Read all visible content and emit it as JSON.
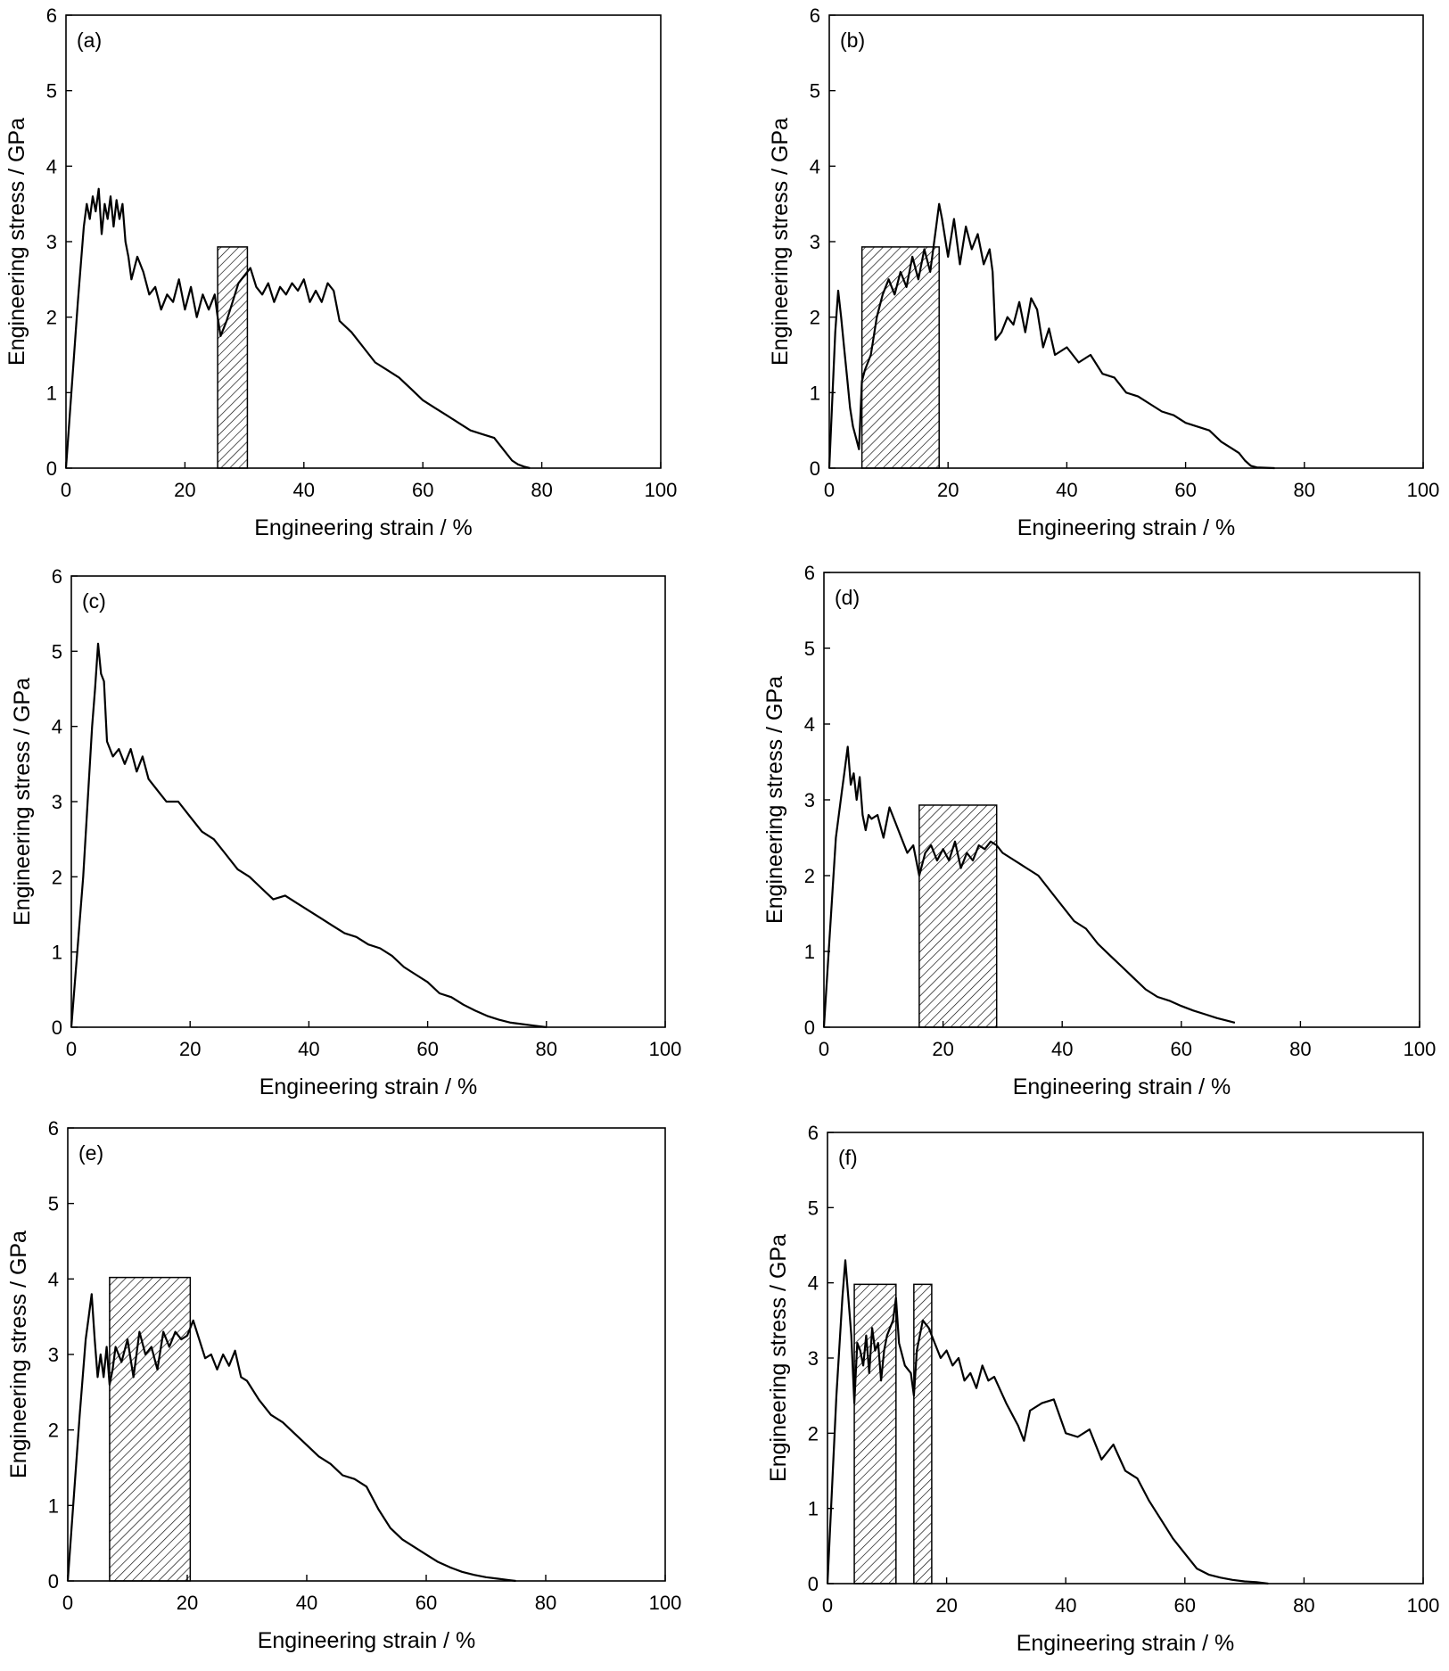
{
  "chart_data": [
    {
      "panel": "(a)",
      "type": "line",
      "xlabel": "Engineering strain / %",
      "ylabel": "Engineering stress / GPa",
      "xlim": [
        0,
        100
      ],
      "ylim": [
        0,
        6
      ],
      "xticks": [
        "0",
        "20",
        "40",
        "60",
        "80",
        "100"
      ],
      "yticks": [
        "0",
        "1",
        "2",
        "3",
        "4",
        "5",
        "6"
      ],
      "shaded": [
        {
          "x0": 25.5,
          "x1": 30.5,
          "y": 2.93
        }
      ],
      "x": [
        0,
        2,
        3,
        3.5,
        4,
        4.5,
        5,
        5.5,
        6,
        6.5,
        7,
        7.5,
        8,
        8.5,
        9,
        9.5,
        10,
        10.5,
        11,
        12,
        13,
        14,
        15,
        16,
        17,
        18,
        19,
        20,
        21,
        22,
        23,
        24,
        25,
        25.5,
        26,
        27,
        28,
        29,
        30,
        31,
        32,
        33,
        34,
        35,
        36,
        37,
        38,
        39,
        40,
        41,
        42,
        43,
        44,
        45,
        46,
        48,
        50,
        52,
        54,
        56,
        58,
        60,
        62,
        64,
        66,
        68,
        70,
        72,
        74,
        75,
        76,
        77,
        78
      ],
      "y": [
        0,
        2.2,
        3.2,
        3.5,
        3.3,
        3.6,
        3.4,
        3.7,
        3.1,
        3.5,
        3.3,
        3.6,
        3.2,
        3.55,
        3.3,
        3.5,
        3.0,
        2.8,
        2.5,
        2.8,
        2.6,
        2.3,
        2.4,
        2.1,
        2.3,
        2.2,
        2.5,
        2.1,
        2.4,
        2.0,
        2.3,
        2.1,
        2.3,
        2.0,
        1.75,
        1.95,
        2.2,
        2.45,
        2.55,
        2.65,
        2.4,
        2.3,
        2.45,
        2.2,
        2.4,
        2.3,
        2.45,
        2.35,
        2.5,
        2.2,
        2.35,
        2.2,
        2.45,
        2.35,
        1.95,
        1.8,
        1.6,
        1.4,
        1.3,
        1.2,
        1.05,
        0.9,
        0.8,
        0.7,
        0.6,
        0.5,
        0.45,
        0.4,
        0.2,
        0.1,
        0.05,
        0.02,
        0
      ]
    },
    {
      "panel": "(b)",
      "type": "line",
      "xlabel": "Engineering strain / %",
      "ylabel": "Engineering stress / GPa",
      "xlim": [
        0,
        100
      ],
      "ylim": [
        0,
        6
      ],
      "xticks": [
        "0",
        "20",
        "40",
        "60",
        "80",
        "100"
      ],
      "yticks": [
        "0",
        "1",
        "2",
        "3",
        "4",
        "5",
        "6"
      ],
      "shaded": [
        {
          "x0": 5.5,
          "x1": 18.5,
          "y": 2.93
        }
      ],
      "x": [
        0,
        1,
        1.5,
        2,
        2.5,
        3,
        3.5,
        4,
        4.5,
        5,
        5.5,
        6,
        7,
        8,
        9,
        10,
        11,
        12,
        13,
        14,
        15,
        16,
        17,
        18,
        18.5,
        19,
        20,
        21,
        22,
        23,
        24,
        25,
        26,
        27,
        27.5,
        28,
        29,
        30,
        31,
        32,
        33,
        34,
        35,
        36,
        37,
        38,
        40,
        42,
        44,
        46,
        48,
        50,
        52,
        54,
        56,
        58,
        60,
        62,
        64,
        66,
        68,
        69,
        70,
        71,
        72,
        75
      ],
      "y": [
        0,
        1.8,
        2.35,
        2.0,
        1.6,
        1.2,
        0.8,
        0.55,
        0.4,
        0.25,
        1.15,
        1.3,
        1.5,
        2.0,
        2.3,
        2.5,
        2.3,
        2.6,
        2.4,
        2.8,
        2.5,
        2.9,
        2.6,
        3.2,
        3.5,
        3.3,
        2.8,
        3.3,
        2.7,
        3.2,
        2.9,
        3.1,
        2.7,
        2.9,
        2.6,
        1.7,
        1.8,
        2.0,
        1.9,
        2.2,
        1.8,
        2.25,
        2.1,
        1.6,
        1.85,
        1.5,
        1.6,
        1.4,
        1.5,
        1.25,
        1.2,
        1.0,
        0.95,
        0.85,
        0.75,
        0.7,
        0.6,
        0.55,
        0.5,
        0.35,
        0.25,
        0.2,
        0.1,
        0.03,
        0.01,
        0
      ]
    },
    {
      "panel": "(c)",
      "type": "line",
      "xlabel": "Engineering strain / %",
      "ylabel": "Engineering stress / GPa",
      "xlim": [
        0,
        100
      ],
      "ylim": [
        0,
        6
      ],
      "xticks": [
        "0",
        "20",
        "40",
        "60",
        "80",
        "100"
      ],
      "yticks": [
        "0",
        "1",
        "2",
        "3",
        "4",
        "5",
        "6"
      ],
      "shaded": [],
      "x": [
        0,
        2,
        3.5,
        4,
        4.5,
        5,
        5.5,
        6,
        7,
        8,
        9,
        10,
        11,
        12,
        13,
        14,
        15,
        16,
        18,
        20,
        22,
        24,
        26,
        28,
        30,
        32,
        34,
        36,
        38,
        40,
        42,
        44,
        46,
        48,
        50,
        52,
        54,
        56,
        58,
        60,
        62,
        64,
        66,
        68,
        70,
        72,
        74,
        76,
        78,
        80
      ],
      "y": [
        0,
        2.0,
        4.0,
        4.5,
        5.1,
        4.7,
        4.6,
        3.8,
        3.6,
        3.7,
        3.5,
        3.7,
        3.4,
        3.6,
        3.3,
        3.2,
        3.1,
        3.0,
        3.0,
        2.8,
        2.6,
        2.5,
        2.3,
        2.1,
        2.0,
        1.85,
        1.7,
        1.75,
        1.65,
        1.55,
        1.45,
        1.35,
        1.25,
        1.2,
        1.1,
        1.05,
        0.95,
        0.8,
        0.7,
        0.6,
        0.45,
        0.4,
        0.3,
        0.22,
        0.15,
        0.1,
        0.06,
        0.04,
        0.02,
        0
      ]
    },
    {
      "panel": "(d)",
      "type": "line",
      "xlabel": "Engineering strain / %",
      "ylabel": "Engineering stress / GPa",
      "xlim": [
        0,
        100
      ],
      "ylim": [
        0,
        6
      ],
      "xticks": [
        "0",
        "20",
        "40",
        "60",
        "80",
        "100"
      ],
      "yticks": [
        "0",
        "1",
        "2",
        "3",
        "4",
        "5",
        "6"
      ],
      "shaded": [
        {
          "x0": 16,
          "x1": 29,
          "y": 2.93
        }
      ],
      "x": [
        0,
        2,
        3,
        3.5,
        4,
        4.5,
        5,
        5.5,
        6,
        6.5,
        7,
        7.5,
        8,
        9,
        10,
        11,
        12,
        13,
        14,
        15,
        16,
        17,
        18,
        19,
        20,
        21,
        22,
        23,
        24,
        25,
        26,
        27,
        28,
        29,
        30,
        32,
        34,
        36,
        38,
        40,
        42,
        44,
        46,
        48,
        50,
        52,
        54,
        56,
        58,
        60,
        62,
        64,
        66,
        68,
        69
      ],
      "y": [
        0,
        2.5,
        3.1,
        3.4,
        3.7,
        3.2,
        3.35,
        3.0,
        3.3,
        2.8,
        2.6,
        2.8,
        2.75,
        2.8,
        2.5,
        2.9,
        2.7,
        2.5,
        2.3,
        2.4,
        2.0,
        2.3,
        2.4,
        2.2,
        2.35,
        2.2,
        2.45,
        2.1,
        2.3,
        2.2,
        2.4,
        2.35,
        2.45,
        2.4,
        2.3,
        2.2,
        2.1,
        2.0,
        1.8,
        1.6,
        1.4,
        1.3,
        1.1,
        0.95,
        0.8,
        0.65,
        0.5,
        0.4,
        0.35,
        0.28,
        0.22,
        0.17,
        0.12,
        0.08,
        0.06
      ]
    },
    {
      "panel": "(e)",
      "type": "line",
      "xlabel": "Engineering strain / %",
      "ylabel": "Engineering stress / GPa",
      "xlim": [
        0,
        100
      ],
      "ylim": [
        0,
        6
      ],
      "xticks": [
        "0",
        "20",
        "40",
        "60",
        "80",
        "100"
      ],
      "yticks": [
        "0",
        "1",
        "2",
        "3",
        "4",
        "5",
        "6"
      ],
      "shaded": [
        {
          "x0": 7,
          "x1": 20.5,
          "y": 4.02
        }
      ],
      "x": [
        0,
        2,
        3,
        3.5,
        4,
        4.5,
        5,
        5.5,
        6,
        6.5,
        7,
        7.5,
        8,
        9,
        10,
        11,
        12,
        13,
        14,
        15,
        16,
        17,
        18,
        19,
        20,
        21,
        22,
        23,
        24,
        25,
        26,
        27,
        28,
        29,
        30,
        32,
        34,
        36,
        38,
        40,
        42,
        44,
        46,
        48,
        50,
        52,
        54,
        56,
        58,
        60,
        62,
        64,
        66,
        68,
        70,
        72,
        74,
        75
      ],
      "y": [
        0,
        2.2,
        3.2,
        3.5,
        3.8,
        3.2,
        2.7,
        3.0,
        2.7,
        3.1,
        2.6,
        2.8,
        3.1,
        2.9,
        3.2,
        2.7,
        3.3,
        3.0,
        3.1,
        2.8,
        3.3,
        3.1,
        3.3,
        3.2,
        3.25,
        3.45,
        3.2,
        2.95,
        3.0,
        2.8,
        3.0,
        2.85,
        3.05,
        2.7,
        2.65,
        2.4,
        2.2,
        2.1,
        1.95,
        1.8,
        1.65,
        1.55,
        1.4,
        1.35,
        1.25,
        0.95,
        0.7,
        0.55,
        0.45,
        0.35,
        0.25,
        0.18,
        0.12,
        0.08,
        0.05,
        0.03,
        0.01,
        0
      ]
    },
    {
      "panel": "(f)",
      "type": "line",
      "xlabel": "Engineering strain / %",
      "ylabel": "Engineering stress / GPa",
      "xlim": [
        0,
        100
      ],
      "ylim": [
        0,
        6
      ],
      "xticks": [
        "0",
        "20",
        "40",
        "60",
        "80",
        "100"
      ],
      "yticks": [
        "0",
        "1",
        "2",
        "3",
        "4",
        "5",
        "6"
      ],
      "shaded": [
        {
          "x0": 4.5,
          "x1": 11.5,
          "y": 3.98
        },
        {
          "x0": 14.5,
          "x1": 17.5,
          "y": 3.98
        }
      ],
      "x": [
        0,
        1.5,
        2.5,
        3,
        3.5,
        4,
        4.5,
        5,
        5.5,
        6,
        6.5,
        7,
        7.5,
        8,
        8.5,
        9,
        9.5,
        10,
        10.5,
        11,
        11.5,
        12,
        13,
        14,
        14.5,
        15,
        16,
        17,
        18,
        19,
        20,
        21,
        22,
        23,
        24,
        25,
        26,
        27,
        28,
        30,
        32,
        33,
        34,
        36,
        38,
        40,
        42,
        44,
        46,
        48,
        50,
        52,
        54,
        56,
        58,
        60,
        62,
        64,
        66,
        68,
        70,
        72,
        74
      ],
      "y": [
        0,
        2.5,
        3.8,
        4.3,
        3.8,
        3.3,
        2.4,
        3.2,
        3.1,
        2.9,
        3.3,
        2.8,
        3.4,
        3.1,
        3.2,
        2.7,
        3.1,
        3.3,
        3.4,
        3.5,
        3.8,
        3.2,
        2.9,
        2.8,
        2.5,
        3.1,
        3.5,
        3.4,
        3.2,
        3.0,
        3.1,
        2.9,
        3.0,
        2.7,
        2.8,
        2.6,
        2.9,
        2.7,
        2.75,
        2.4,
        2.1,
        1.9,
        2.3,
        2.4,
        2.45,
        2.0,
        1.95,
        2.05,
        1.65,
        1.85,
        1.5,
        1.4,
        1.1,
        0.85,
        0.6,
        0.4,
        0.2,
        0.12,
        0.08,
        0.05,
        0.03,
        0.02,
        0
      ]
    }
  ]
}
